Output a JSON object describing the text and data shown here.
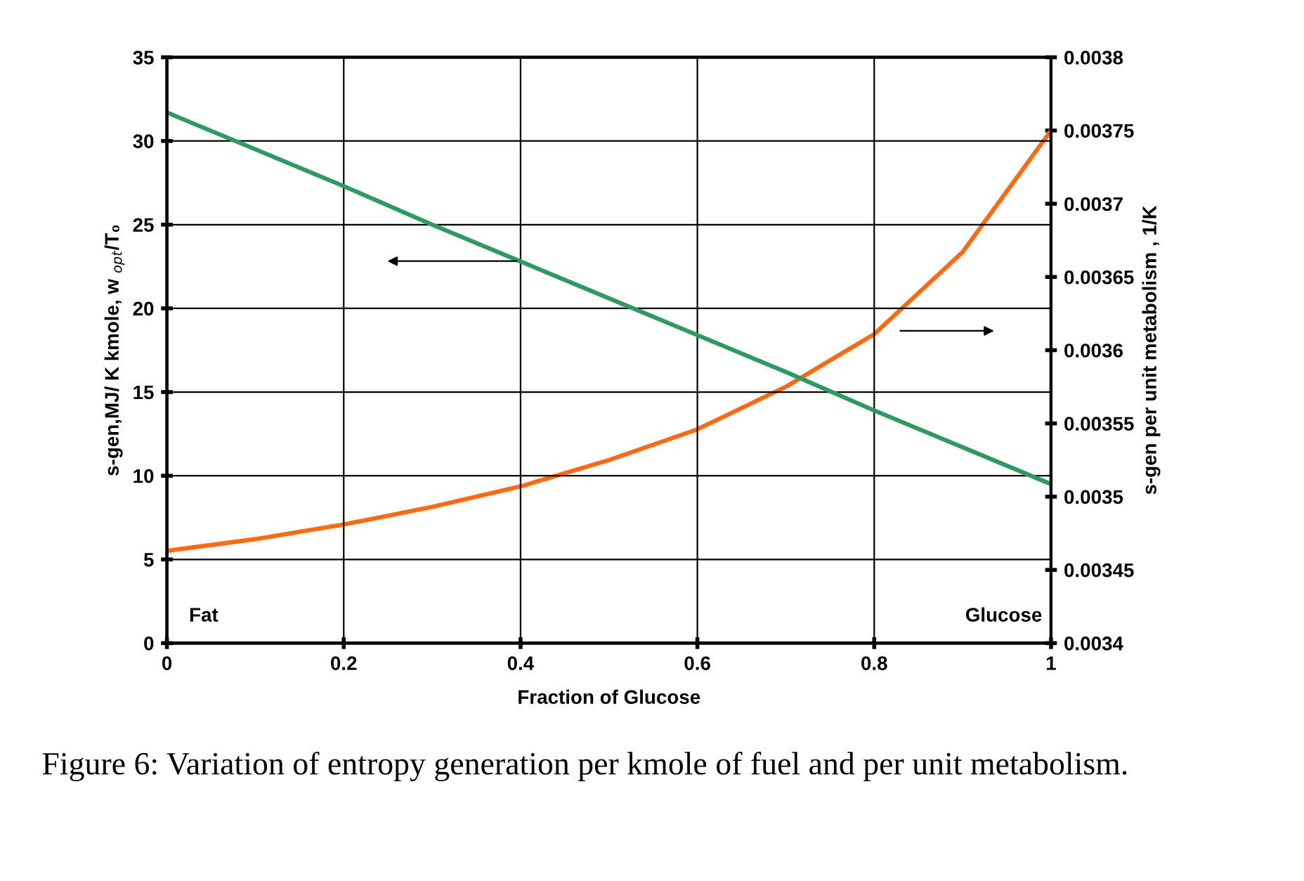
{
  "chart_data": {
    "type": "line",
    "xlabel": "Fraction of Glucose",
    "ylabel": "s-gen,MJ/ K kmole, w $_{opt}$/T₀",
    "y2label": "s-gen per unit metabolism , 1/K",
    "x": [
      0,
      0.1,
      0.2,
      0.3,
      0.4,
      0.5,
      0.6,
      0.7,
      0.8,
      0.9,
      1
    ],
    "series": [
      {
        "color": "#2e9a62",
        "values": [
          31.7,
          29.5,
          27.3,
          25.0,
          22.8,
          20.6,
          18.4,
          16.2,
          13.9,
          11.7,
          9.5
        ]
      },
      {
        "color": "#ff6a13",
        "axis": "y2",
        "values": [
          0.003463,
          0.003471,
          0.003481,
          0.003493,
          0.003507,
          0.003525,
          0.003546,
          0.003575,
          0.003611,
          0.003667,
          0.00375
        ]
      }
    ],
    "xlim": [
      0,
      1
    ],
    "xticks": [
      0,
      0.2,
      0.4,
      0.6,
      0.8,
      1
    ],
    "ylim": [
      0,
      35
    ],
    "yticks": [
      0,
      5,
      10,
      15,
      20,
      25,
      30,
      35
    ],
    "y2lim": [
      0.0034,
      0.0038
    ],
    "y2ticks": [
      0.0034,
      0.00345,
      0.0035,
      0.00355,
      0.0036,
      0.00365,
      0.0037,
      0.00375,
      0.0038
    ],
    "grid": true,
    "legend": false,
    "marker": "none",
    "line_style": "solid",
    "annotations": [
      "Fat",
      "Glucose",
      "Figure 6: Variation of entropy generation per kmole of fuel and per unit metabolism."
    ]
  }
}
